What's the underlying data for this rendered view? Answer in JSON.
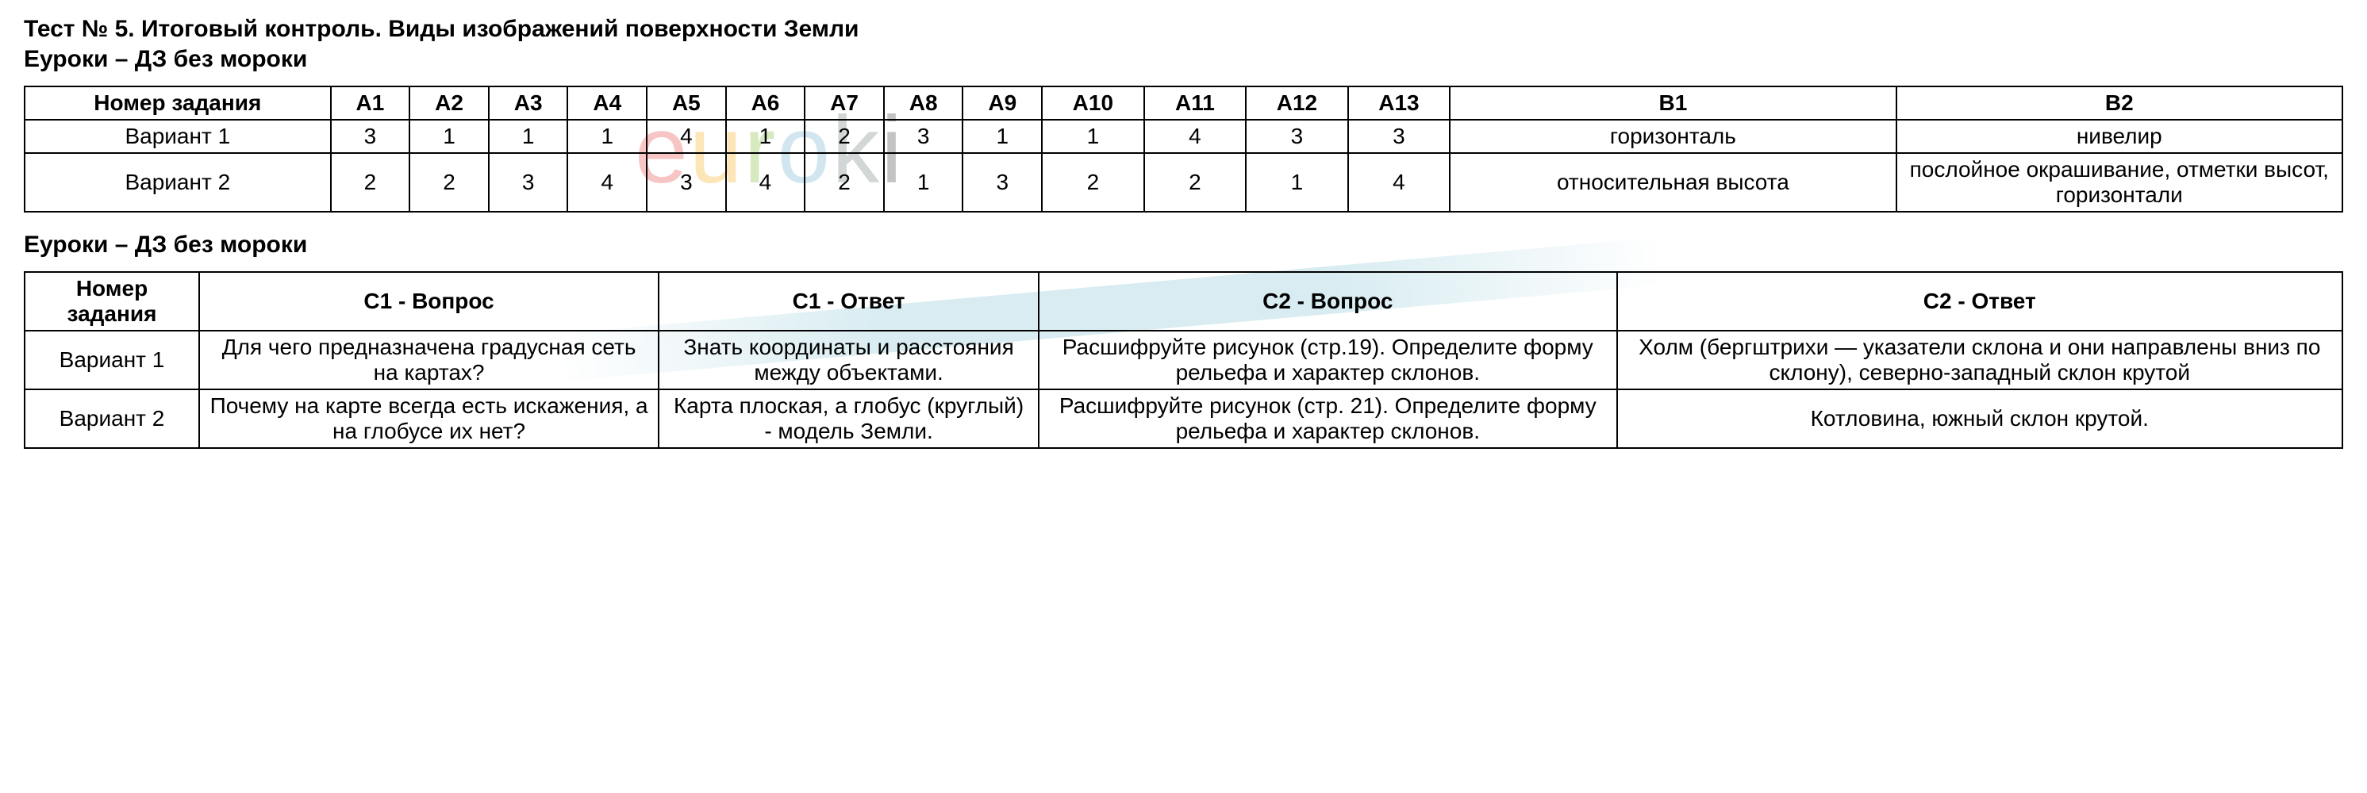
{
  "header": {
    "title": "Тест № 5. Итоговый контроль. Виды изображений поверхности Земли",
    "subtitle": "Еуроки – ДЗ без мороки",
    "subtitle2": "Еуроки – ДЗ без мороки"
  },
  "table1": {
    "headers": {
      "task": "Номер задания",
      "a1": "А1",
      "a2": "А2",
      "a3": "А3",
      "a4": "А4",
      "a5": "А5",
      "a6": "А6",
      "a7": "А7",
      "a8": "А8",
      "a9": "А9",
      "a10": "А10",
      "a11": "А11",
      "a12": "А12",
      "a13": "А13",
      "b1": "В1",
      "b2": "В2"
    },
    "rows": [
      {
        "label": "Вариант 1",
        "a1": "3",
        "a2": "1",
        "a3": "1",
        "a4": "1",
        "a5": "4",
        "a6": "1",
        "a7": "2",
        "a8": "3",
        "a9": "1",
        "a10": "1",
        "a11": "4",
        "a12": "3",
        "a13": "3",
        "b1": "горизонталь",
        "b2": "нивелир"
      },
      {
        "label": "Вариант 2",
        "a1": "2",
        "a2": "2",
        "a3": "3",
        "a4": "4",
        "a5": "3",
        "a6": "4",
        "a7": "2",
        "a8": "1",
        "a9": "3",
        "a10": "2",
        "a11": "2",
        "a12": "1",
        "a13": "4",
        "b1": "относительная высота",
        "b2": "послойное окрашивание, отметки высот, горизонтали"
      }
    ]
  },
  "table2": {
    "headers": {
      "task": "Номер задания",
      "c1q": "С1 - Вопрос",
      "c1a": "С1 - Ответ",
      "c2q": "С2 - Вопрос",
      "c2a": "С2 - Ответ"
    },
    "rows": [
      {
        "label": "Вариант 1",
        "c1q": "Для чего предназначена градусная сеть на картах?",
        "c1a": "Знать координаты и расстояния между объектами.",
        "c2q": "Расшифруйте рисунок (стр.19). Определите форму рельефа и характер склонов.",
        "c2a": "Холм (бергштрихи — указатели склона и они направлены вниз по склону), северно-западный склон крутой"
      },
      {
        "label": "Вариант 2",
        "c1q": "Почему на карте всегда есть искажения, а на глобусе их нет?",
        "c1a": "Карта плоская, а глобус (круглый) - модель Земли.",
        "c2q": "Расшифруйте рисунок (стр. 21). Определите форму рельефа и характер склонов.",
        "c2a": "Котловина, южный склон крутой."
      }
    ]
  },
  "watermark": {
    "text": "euroki",
    "colors": {
      "e": "#ec5b5b",
      "u": "#f7b731",
      "r": "#8bc34a",
      "o": "#7fb9d6",
      "k": "#7f8c8d",
      "i": "#555555"
    }
  },
  "styling": {
    "background_color": "#ffffff",
    "text_color": "#000000",
    "border_color": "#000000",
    "font_family": "Arial",
    "title_fontsize": 30,
    "cell_fontsize": 28,
    "title_weight": "bold",
    "header_weight": "bold"
  }
}
